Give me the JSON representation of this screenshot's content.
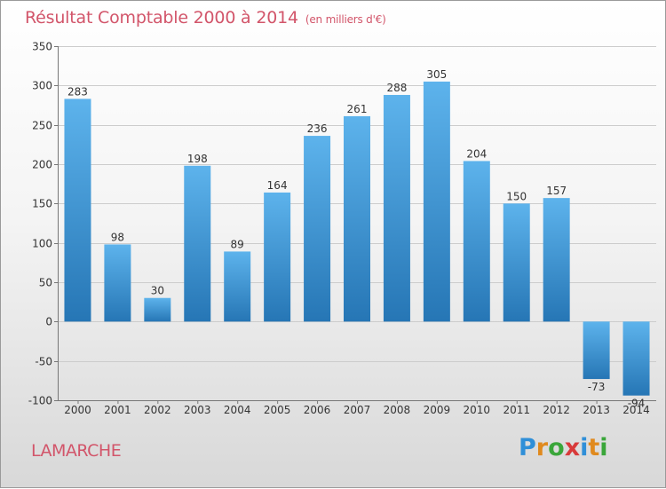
{
  "title": "Résultat Comptable 2000 à 2014",
  "unit": "(en milliers d'€)",
  "commune": "LAMARCHE",
  "logo": {
    "letters": [
      "P",
      "r",
      "o",
      "x",
      "i",
      "t",
      "i"
    ],
    "colors": [
      "#2f8fd8",
      "#e08a1e",
      "#3aa63a",
      "#d83a3a",
      "#2f8fd8",
      "#e08a1e",
      "#3aa63a"
    ]
  },
  "colors": {
    "bar_top": "#5db3ec",
    "bar_bottom": "#2676b5",
    "grid": "#cccccc",
    "axis": "#777777",
    "label": "#333333"
  },
  "chart_data": {
    "type": "bar",
    "categories": [
      "2000",
      "2001",
      "2002",
      "2003",
      "2004",
      "2005",
      "2006",
      "2007",
      "2008",
      "2009",
      "2010",
      "2011",
      "2012",
      "2013",
      "2014"
    ],
    "values": [
      283,
      98,
      30,
      198,
      89,
      164,
      236,
      261,
      288,
      305,
      204,
      150,
      157,
      -73,
      -94
    ],
    "ylim": [
      -100,
      350
    ],
    "yticks": [
      -100,
      -50,
      0,
      50,
      100,
      150,
      200,
      250,
      300,
      350
    ],
    "grid": true,
    "xlabel": "",
    "ylabel": ""
  }
}
